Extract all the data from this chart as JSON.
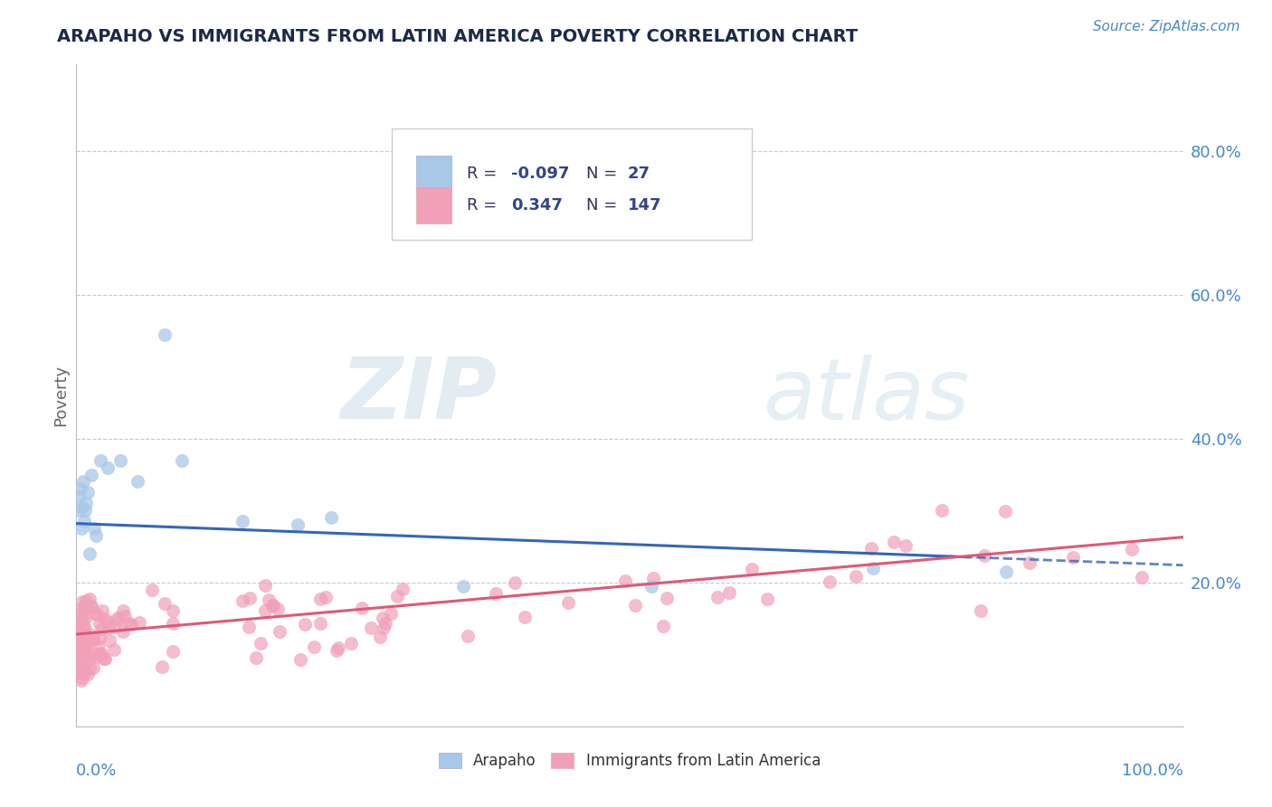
{
  "title": "ARAPAHO VS IMMIGRANTS FROM LATIN AMERICA POVERTY CORRELATION CHART",
  "source": "Source: ZipAtlas.com",
  "ylabel": "Poverty",
  "blue_color": "#a8c8e8",
  "pink_color": "#f0a0b8",
  "blue_line_color": "#3366bb",
  "pink_line_color": "#e05878",
  "watermark_zip": "ZIP",
  "watermark_atlas": "atlas",
  "xlim": [
    0.0,
    1.0
  ],
  "ylim": [
    0.0,
    0.92
  ],
  "ytick_vals": [
    0.2,
    0.4,
    0.6,
    0.8
  ],
  "ytick_labels": [
    "20.0%",
    "40.0%",
    "60.0%",
    "80.0%"
  ],
  "legend_text_color": "#334488",
  "legend_r1_val": "-0.097",
  "legend_n1_val": "27",
  "legend_r2_val": "0.347",
  "legend_n2_val": "147",
  "axis_label_color": "#4488cc",
  "title_color": "#1a2a4a",
  "source_color": "#4488cc"
}
